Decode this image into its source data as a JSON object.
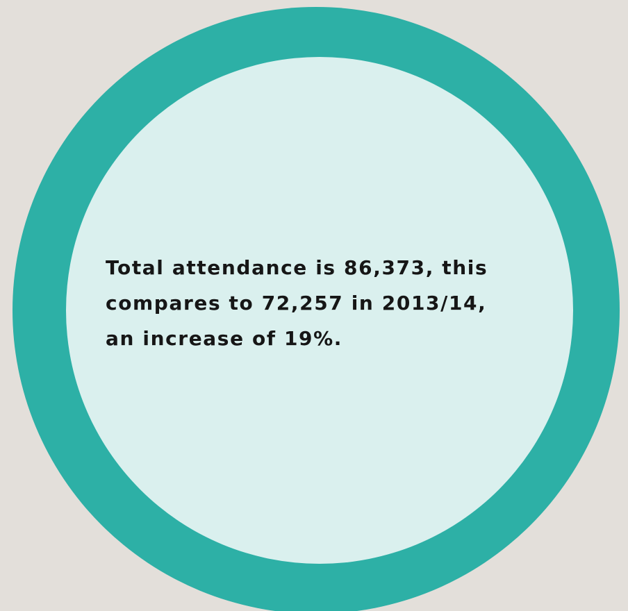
{
  "callout": {
    "lines": [
      "Total attendance is 86,373, this",
      "compares to 72,257 in 2013/14,",
      "an increase of 19%."
    ]
  }
}
